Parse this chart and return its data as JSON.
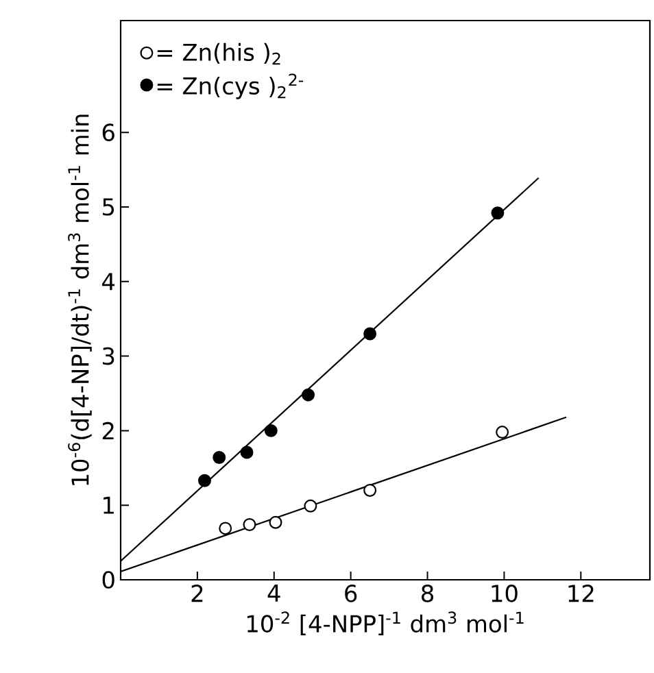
{
  "chart_data": {
    "type": "scatter",
    "xlabel": "10$^{-2}$ [4-NPP]$^{-1}$ dm$^{3}$ mol$^{-1}$",
    "ylabel": "10$^{-6}$(d[4-NP]/dt)$^{-1}$ dm$^{3}$ mol$^{-1}$ min",
    "xlim": [
      0,
      13.8
    ],
    "ylim": [
      0,
      7.5
    ],
    "xticks": [
      2,
      4,
      6,
      8,
      10,
      12
    ],
    "yticks": [
      0,
      1,
      2,
      3,
      4,
      5,
      6
    ],
    "marker": "circle",
    "legend": "top left",
    "series": [
      {
        "name": "= Zn(his )$_{2}$",
        "color": "#ffffff",
        "x": [
          2.73,
          3.36,
          4.04,
          4.95,
          6.5,
          9.95
        ],
        "values": [
          0.69,
          0.74,
          0.77,
          0.99,
          1.2,
          1.98
        ]
      },
      {
        "name": "= Zn(cys )$_{2}$$^{2-}$",
        "color": "#000000",
        "x": [
          2.19,
          2.57,
          3.29,
          3.92,
          4.89,
          6.5,
          9.83
        ],
        "values": [
          1.33,
          1.64,
          1.71,
          2.0,
          2.48,
          3.3,
          4.92
        ]
      },
      {
        "type": "line",
        "color": "#000000",
        "marker": "none",
        "x": [
          0,
          11.62
        ],
        "values": [
          0.11,
          2.18
        ]
      },
      {
        "type": "line",
        "color": "#000000",
        "marker": "none",
        "x": [
          0,
          10.9
        ],
        "values": [
          0.25,
          5.39
        ]
      }
    ]
  }
}
